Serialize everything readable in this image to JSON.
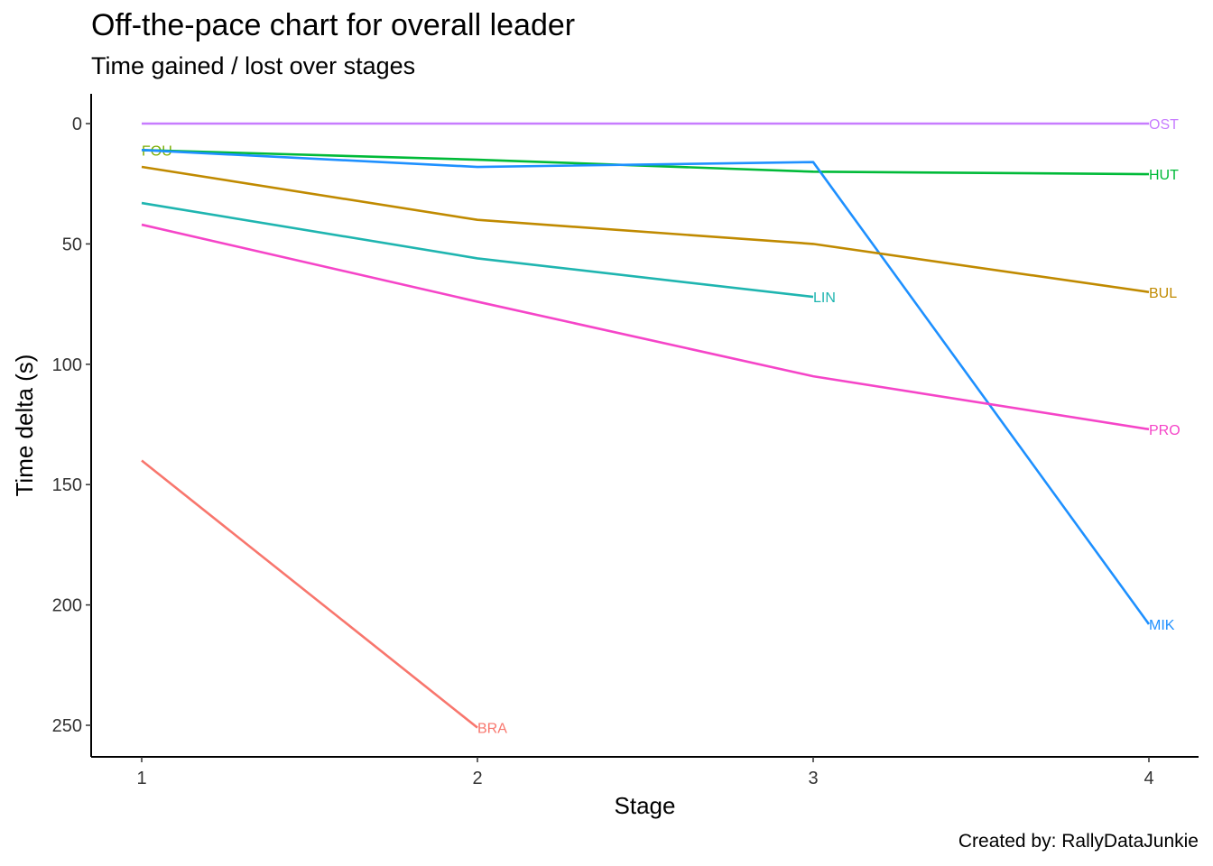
{
  "chart_data": {
    "type": "line",
    "title": "Off-the-pace chart for overall leader",
    "subtitle": "Time gained / lost over stages",
    "caption": "Created by: RallyDataJunkie",
    "xlabel": "Stage",
    "ylabel": "Time delta (s)",
    "x_ticks": [
      1,
      2,
      3,
      4
    ],
    "y_ticks": [
      0,
      50,
      100,
      150,
      200,
      250
    ],
    "xlim": [
      0.85,
      4.15
    ],
    "ylim": [
      262,
      -12
    ],
    "y_reversed": true,
    "grid": false,
    "legend": "none",
    "series": [
      {
        "name": "BRA",
        "color": "#F8766D",
        "x": [
          1,
          2
        ],
        "values": [
          140,
          251
        ]
      },
      {
        "name": "FOU",
        "color": "#7CAE00",
        "x": [
          1
        ],
        "values": [
          11
        ]
      },
      {
        "name": "OST",
        "color": "#C77CFF",
        "x": [
          1,
          2,
          3,
          4
        ],
        "values": [
          0,
          0,
          0,
          0
        ]
      },
      {
        "name": "HUT",
        "color": "#00BA38",
        "x": [
          1,
          2,
          3,
          4
        ],
        "values": [
          11,
          15,
          20,
          21
        ]
      },
      {
        "name": "MIK",
        "color": "#1E90FF",
        "x": [
          1,
          2,
          3,
          4
        ],
        "values": [
          11,
          18,
          16,
          208
        ]
      },
      {
        "name": "BUL",
        "color": "#C08A00",
        "x": [
          1,
          2,
          3,
          4
        ],
        "values": [
          18,
          40,
          50,
          70
        ]
      },
      {
        "name": "LIN",
        "color": "#1FB5B0",
        "x": [
          1,
          2,
          3
        ],
        "values": [
          33,
          56,
          72
        ]
      },
      {
        "name": "PRO",
        "color": "#F545C8",
        "x": [
          1,
          2,
          3,
          4
        ],
        "values": [
          42,
          74,
          105,
          127
        ]
      }
    ]
  }
}
